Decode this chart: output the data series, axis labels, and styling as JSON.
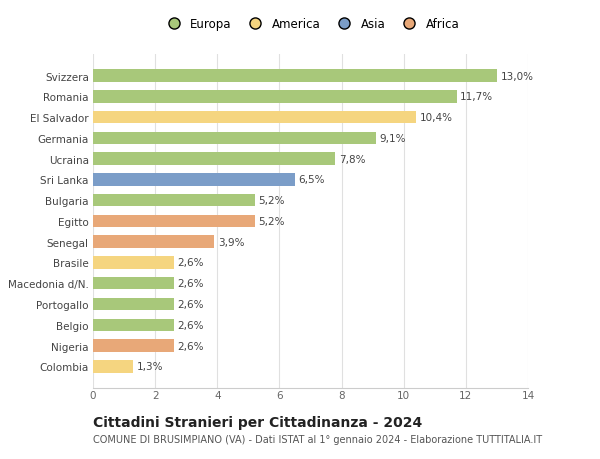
{
  "categories": [
    "Svizzera",
    "Romania",
    "El Salvador",
    "Germania",
    "Ucraina",
    "Sri Lanka",
    "Bulgaria",
    "Egitto",
    "Senegal",
    "Brasile",
    "Macedonia d/N.",
    "Portogallo",
    "Belgio",
    "Nigeria",
    "Colombia"
  ],
  "values": [
    13.0,
    11.7,
    10.4,
    9.1,
    7.8,
    6.5,
    5.2,
    5.2,
    3.9,
    2.6,
    2.6,
    2.6,
    2.6,
    2.6,
    1.3
  ],
  "labels": [
    "13,0%",
    "11,7%",
    "10,4%",
    "9,1%",
    "7,8%",
    "6,5%",
    "5,2%",
    "5,2%",
    "3,9%",
    "2,6%",
    "2,6%",
    "2,6%",
    "2,6%",
    "2,6%",
    "1,3%"
  ],
  "colors": [
    "#a8c87a",
    "#a8c87a",
    "#f5d580",
    "#a8c87a",
    "#a8c87a",
    "#7b9dc8",
    "#a8c87a",
    "#e8a878",
    "#e8a878",
    "#f5d580",
    "#a8c87a",
    "#a8c87a",
    "#a8c87a",
    "#e8a878",
    "#f5d580"
  ],
  "legend_labels": [
    "Europa",
    "America",
    "Asia",
    "Africa"
  ],
  "legend_colors": [
    "#a8c87a",
    "#f5d580",
    "#7b9dc8",
    "#e8a878"
  ],
  "title": "Cittadini Stranieri per Cittadinanza - 2024",
  "subtitle": "COMUNE DI BRUSIMPIANO (VA) - Dati ISTAT al 1° gennaio 2024 - Elaborazione TUTTITALIA.IT",
  "xlim": [
    0,
    14
  ],
  "xticks": [
    0,
    2,
    4,
    6,
    8,
    10,
    12,
    14
  ],
  "bg_color": "#ffffff",
  "grid_color": "#e0e0e0",
  "label_fontsize": 7.5,
  "ytick_fontsize": 7.5,
  "xtick_fontsize": 7.5,
  "title_fontsize": 10,
  "subtitle_fontsize": 7,
  "legend_fontsize": 8.5
}
